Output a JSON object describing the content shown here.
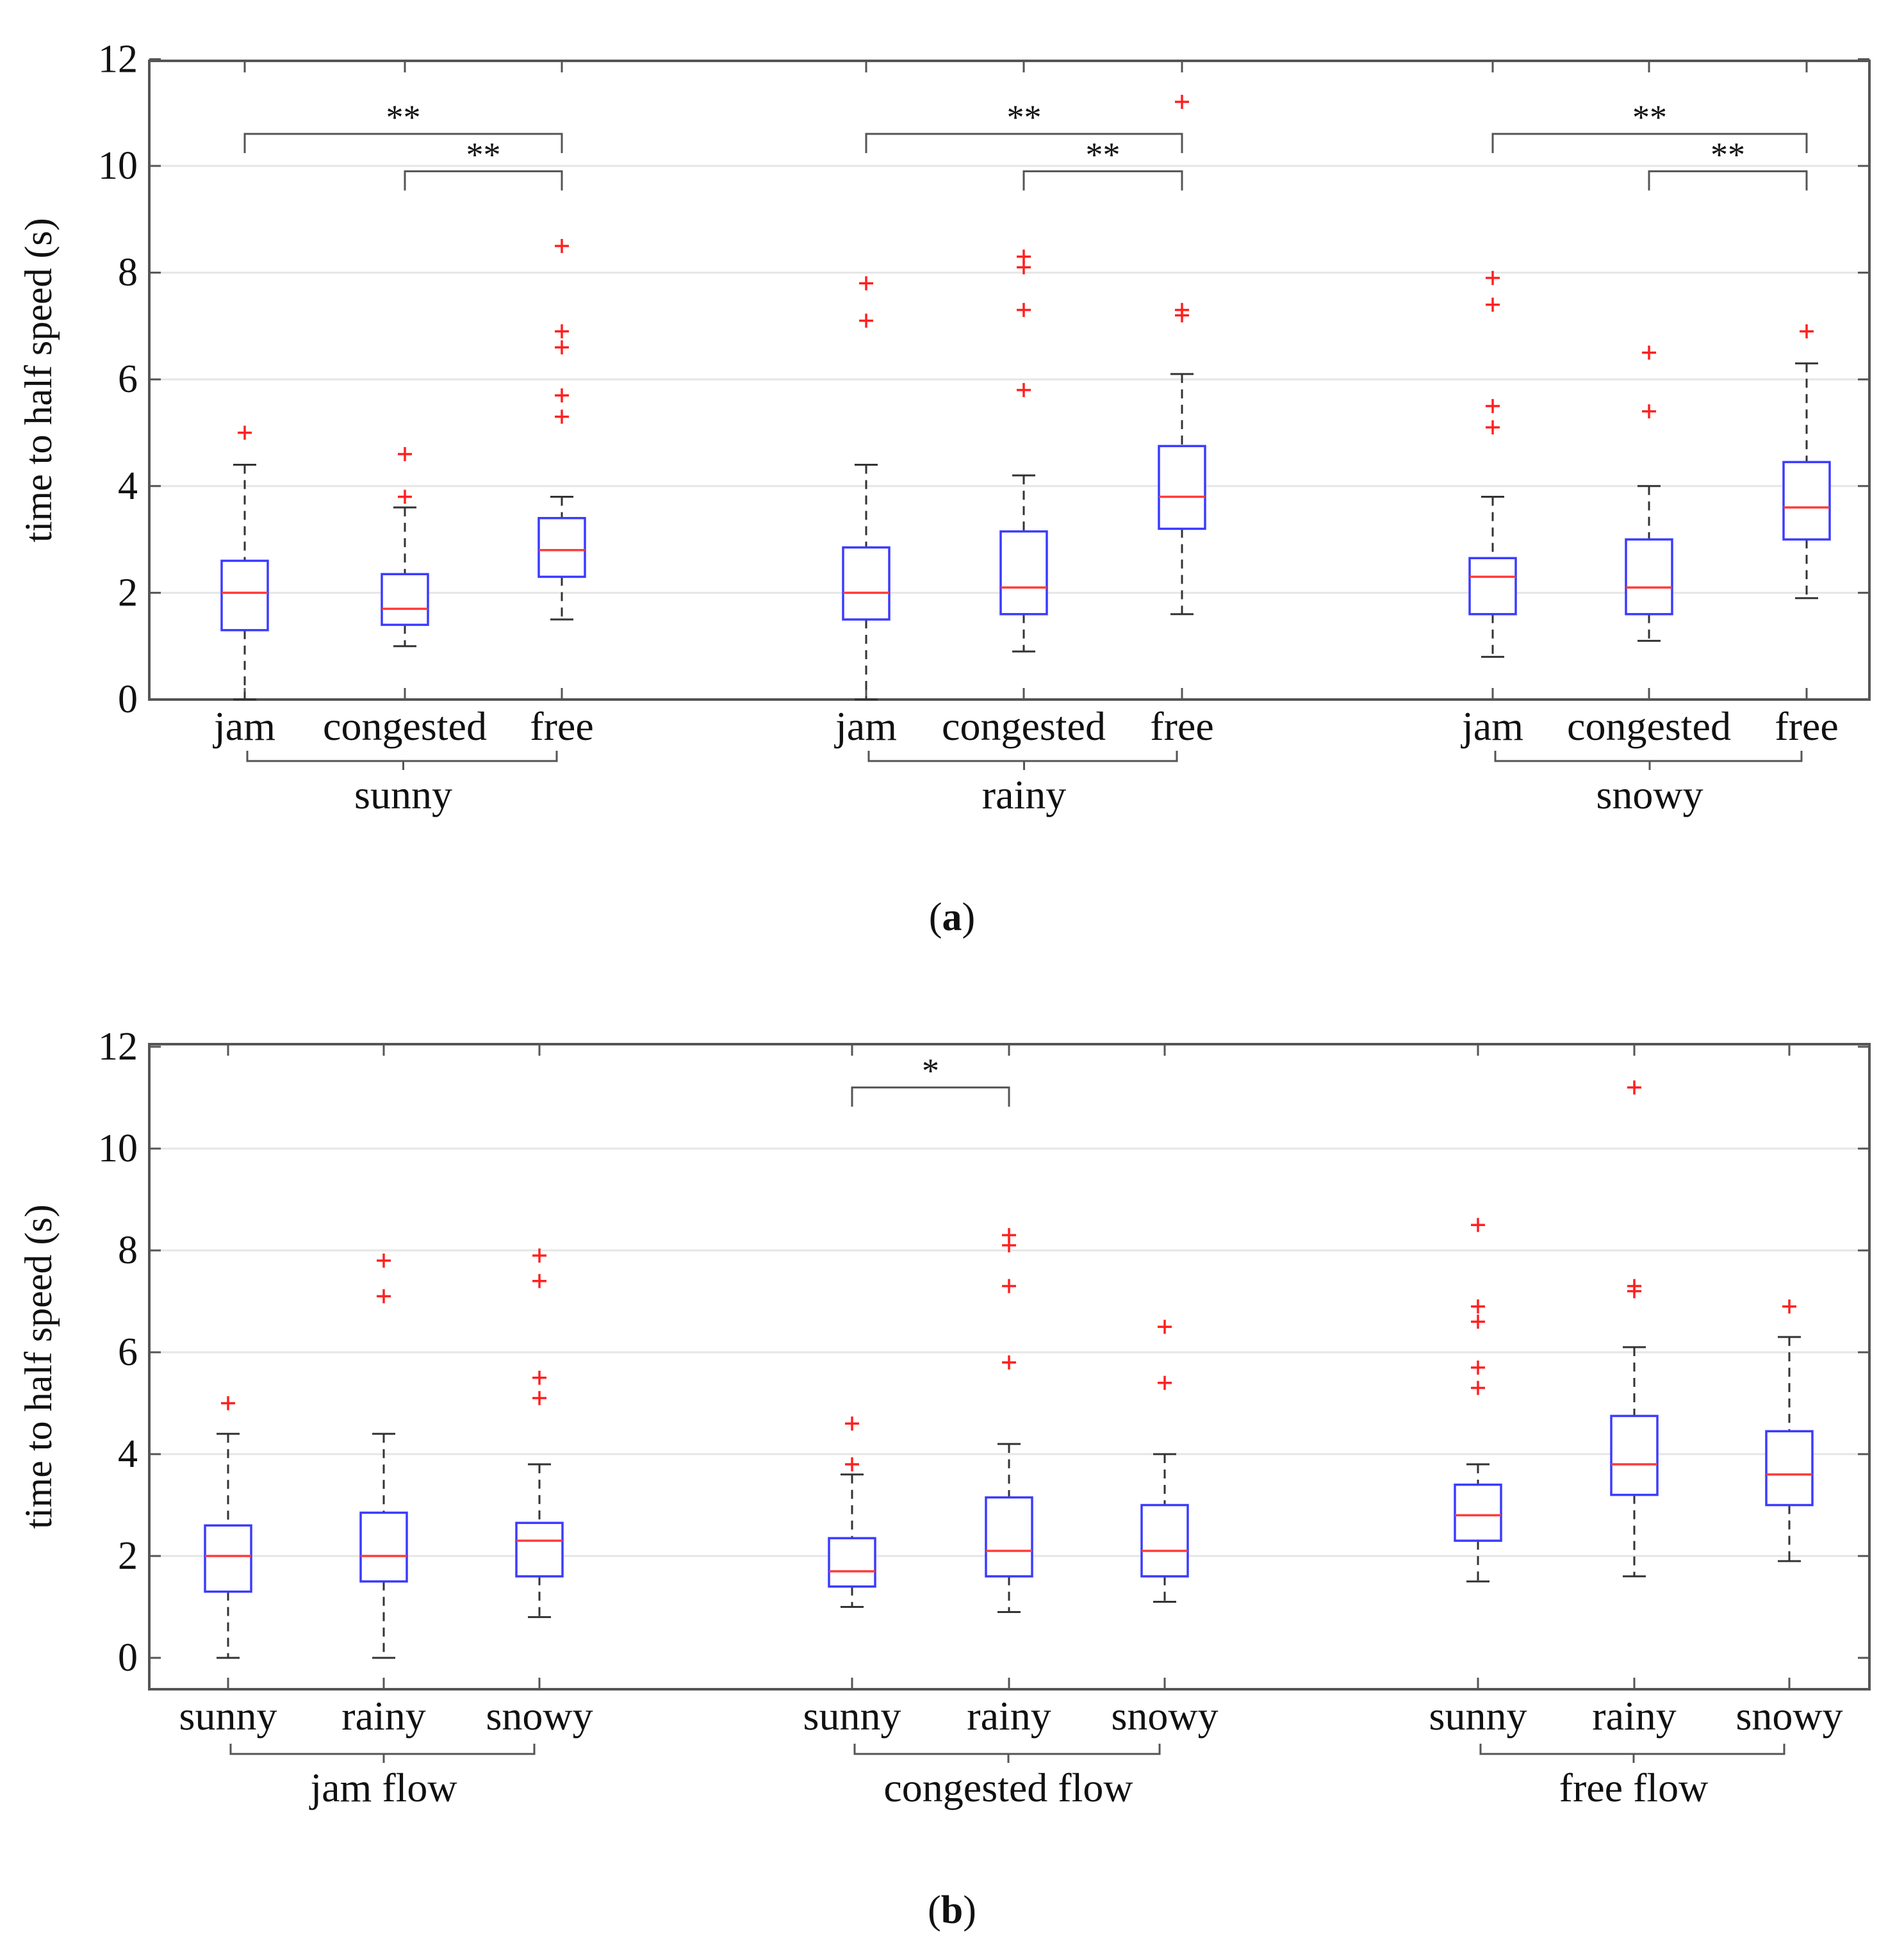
{
  "chart_data": [
    {
      "panel": "a",
      "panel_label": "a",
      "type": "box",
      "ylabel": "time to half speed (s)",
      "ylim": [
        -0.3,
        12
      ],
      "yticks": [
        "0",
        "2",
        "4",
        "6",
        "8",
        "10",
        "12"
      ],
      "ytick_values": [
        0,
        2,
        4,
        6,
        8,
        10,
        12
      ],
      "grid": true,
      "groups": [
        {
          "label": "sunny",
          "boxes": [
            {
              "label": "jam",
              "whisker_low": 0,
              "q1": 1.3,
              "median": 2.0,
              "q3": 2.6,
              "whisker_high": 4.4,
              "outliers": [
                5.0
              ]
            },
            {
              "label": "congested",
              "whisker_low": 1.0,
              "q1": 1.4,
              "median": 1.7,
              "q3": 2.35,
              "whisker_high": 3.6,
              "outliers": [
                3.8,
                4.6
              ]
            },
            {
              "label": "free",
              "whisker_low": 1.5,
              "q1": 2.3,
              "median": 2.8,
              "q3": 3.4,
              "whisker_high": 3.8,
              "outliers": [
                5.3,
                5.7,
                6.6,
                6.9,
                8.5
              ]
            }
          ],
          "significance": [
            {
              "from": 0,
              "to": 2,
              "text": "**",
              "y": 10.6
            },
            {
              "from": 1,
              "to": 2,
              "text": "**",
              "y": 9.9
            }
          ]
        },
        {
          "label": "rainy",
          "boxes": [
            {
              "label": "jam",
              "whisker_low": 0,
              "q1": 1.5,
              "median": 2.0,
              "q3": 2.85,
              "whisker_high": 4.4,
              "outliers": [
                7.1,
                7.8
              ]
            },
            {
              "label": "congested",
              "whisker_low": 0.9,
              "q1": 1.6,
              "median": 2.1,
              "q3": 3.15,
              "whisker_high": 4.2,
              "outliers": [
                5.8,
                7.3,
                8.1,
                8.3
              ]
            },
            {
              "label": "free",
              "whisker_low": 1.6,
              "q1": 3.2,
              "median": 3.8,
              "q3": 4.75,
              "whisker_high": 6.1,
              "outliers": [
                7.2,
                7.3,
                11.2
              ]
            }
          ],
          "significance": [
            {
              "from": 0,
              "to": 2,
              "text": "**",
              "y": 10.6
            },
            {
              "from": 1,
              "to": 2,
              "text": "**",
              "y": 9.9
            }
          ]
        },
        {
          "label": "snowy",
          "boxes": [
            {
              "label": "jam",
              "whisker_low": 0.8,
              "q1": 1.6,
              "median": 2.3,
              "q3": 2.65,
              "whisker_high": 3.8,
              "outliers": [
                5.1,
                5.5,
                7.4,
                7.9
              ]
            },
            {
              "label": "congested",
              "whisker_low": 1.1,
              "q1": 1.6,
              "median": 2.1,
              "q3": 3.0,
              "whisker_high": 4.0,
              "outliers": [
                5.4,
                6.5
              ]
            },
            {
              "label": "free",
              "whisker_low": 1.9,
              "q1": 3.0,
              "median": 3.6,
              "q3": 4.45,
              "whisker_high": 6.3,
              "outliers": [
                6.9
              ]
            }
          ],
          "significance": [
            {
              "from": 0,
              "to": 2,
              "text": "**",
              "y": 10.6
            },
            {
              "from": 1,
              "to": 2,
              "text": "**",
              "y": 9.9
            }
          ]
        }
      ]
    },
    {
      "panel": "b",
      "panel_label": "b",
      "type": "box",
      "ylabel": "time to half speed (s)",
      "ylim": [
        -0.3,
        12
      ],
      "yticks": [
        "0",
        "2",
        "4",
        "6",
        "8",
        "10",
        "12"
      ],
      "ytick_values": [
        0,
        2,
        4,
        6,
        8,
        10,
        12
      ],
      "grid": true,
      "groups": [
        {
          "label": "jam flow",
          "boxes": [
            {
              "label": "sunny",
              "whisker_low": 0,
              "q1": 1.3,
              "median": 2.0,
              "q3": 2.6,
              "whisker_high": 4.4,
              "outliers": [
                5.0
              ]
            },
            {
              "label": "rainy",
              "whisker_low": 0,
              "q1": 1.5,
              "median": 2.0,
              "q3": 2.85,
              "whisker_high": 4.4,
              "outliers": [
                7.1,
                7.8
              ]
            },
            {
              "label": "snowy",
              "whisker_low": 0.8,
              "q1": 1.6,
              "median": 2.3,
              "q3": 2.65,
              "whisker_high": 3.8,
              "outliers": [
                5.1,
                5.5,
                7.4,
                7.9
              ]
            }
          ],
          "significance": []
        },
        {
          "label": "congested flow",
          "boxes": [
            {
              "label": "sunny",
              "whisker_low": 1.0,
              "q1": 1.4,
              "median": 1.7,
              "q3": 2.35,
              "whisker_high": 3.6,
              "outliers": [
                3.8,
                4.6
              ]
            },
            {
              "label": "rainy",
              "whisker_low": 0.9,
              "q1": 1.6,
              "median": 2.1,
              "q3": 3.15,
              "whisker_high": 4.2,
              "outliers": [
                5.8,
                7.3,
                8.1,
                8.3
              ]
            },
            {
              "label": "snowy",
              "whisker_low": 1.1,
              "q1": 1.6,
              "median": 2.1,
              "q3": 3.0,
              "whisker_high": 4.0,
              "outliers": [
                5.4,
                6.5
              ]
            }
          ],
          "significance": [
            {
              "from": 0,
              "to": 1,
              "text": "*",
              "y": 11.2
            }
          ]
        },
        {
          "label": "free flow",
          "boxes": [
            {
              "label": "sunny",
              "whisker_low": 1.5,
              "q1": 2.3,
              "median": 2.8,
              "q3": 3.4,
              "whisker_high": 3.8,
              "outliers": [
                5.3,
                5.7,
                6.6,
                6.9,
                8.5
              ]
            },
            {
              "label": "rainy",
              "whisker_low": 1.6,
              "q1": 3.2,
              "median": 3.8,
              "q3": 4.75,
              "whisker_high": 6.1,
              "outliers": [
                7.2,
                7.3,
                11.2
              ]
            },
            {
              "label": "snowy",
              "whisker_low": 1.9,
              "q1": 3.0,
              "median": 3.6,
              "q3": 4.45,
              "whisker_high": 6.3,
              "outliers": [
                6.9
              ]
            }
          ],
          "significance": []
        }
      ]
    }
  ],
  "colors": {
    "box": "#3b3bff",
    "median": "#ff3b3b",
    "outlier": "#ff2020",
    "whisker": "#333333",
    "axis": "#555555",
    "grid": "#e6e6e6",
    "text": "#111111"
  }
}
